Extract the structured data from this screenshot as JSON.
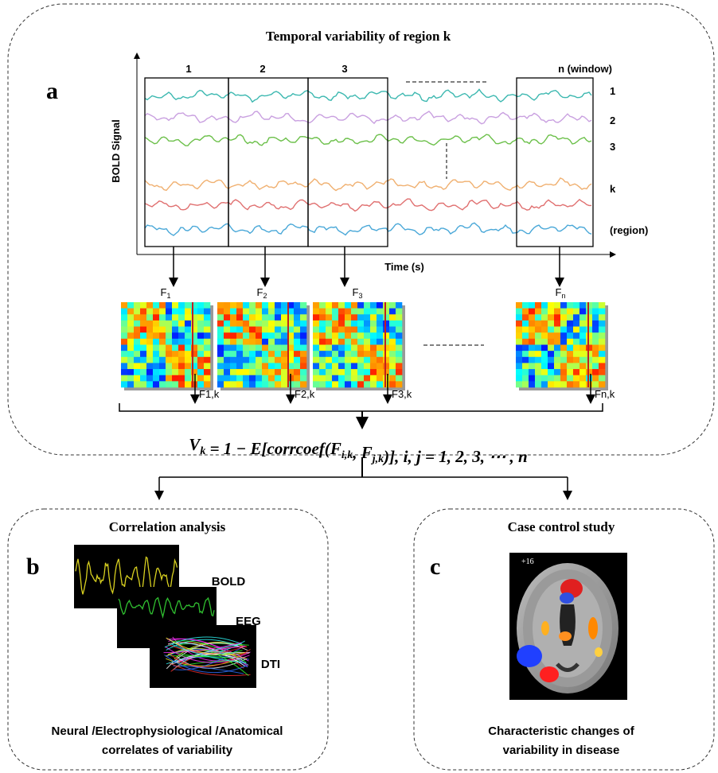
{
  "panel_a": {
    "label": "a",
    "title": "Temporal variability of region k",
    "y_axis_label": "BOLD Signal",
    "x_axis_label": "Time (s)",
    "windows": [
      "1",
      "2",
      "3",
      "n  (window)"
    ],
    "regions": [
      "1",
      "2",
      "3",
      "k",
      "(region)"
    ],
    "matrices": [
      {
        "name": "F",
        "sub": "1",
        "column": "F1,k"
      },
      {
        "name": "F",
        "sub": "2",
        "column": "F2,k"
      },
      {
        "name": "F",
        "sub": "3",
        "column": "F3,k"
      },
      {
        "name": "F",
        "sub": "n",
        "column": "Fn,k"
      }
    ],
    "formula": [
      {
        "text": "V",
        "sub": false
      },
      {
        "text": "k",
        "sub": true
      },
      {
        "text": " = 1 − E[corrcoef(",
        "sub": false
      },
      {
        "text": "F",
        "sub": false
      },
      {
        "text": "i,k",
        "sub": true
      },
      {
        "text": ", ",
        "sub": false
      },
      {
        "text": "F",
        "sub": false
      },
      {
        "text": "j,k",
        "sub": true
      },
      {
        "text": ")], i, j = 1, 2, 3, ⋯ , n",
        "sub": false
      }
    ]
  },
  "panel_b": {
    "label": "b",
    "title": "Correlation analysis",
    "modalities": [
      "BOLD",
      "EEG",
      "DTI"
    ],
    "caption": [
      "Neural /Electrophysiological /Anatomical",
      "correlates of variability"
    ]
  },
  "panel_c": {
    "label": "c",
    "title": "Case control study",
    "slice": "+16",
    "caption": [
      "Characteristic changes of",
      "variability in disease"
    ]
  }
}
